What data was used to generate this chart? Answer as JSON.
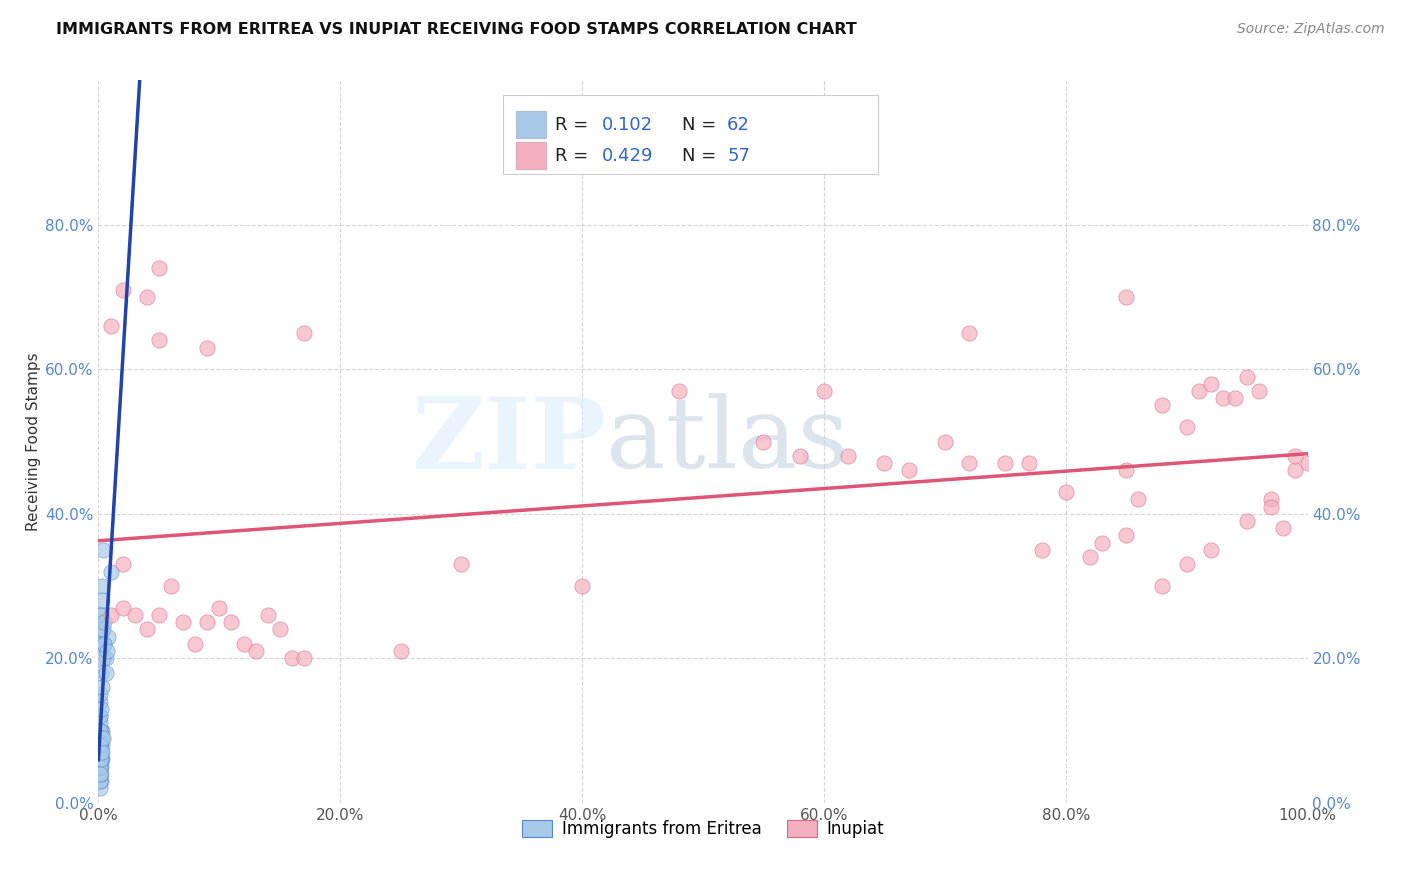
{
  "title": "IMMIGRANTS FROM ERITREA VS INUPIAT RECEIVING FOOD STAMPS CORRELATION CHART",
  "source": "Source: ZipAtlas.com",
  "ylabel": "Receiving Food Stamps",
  "xlim": [
    0,
    1.0
  ],
  "ylim": [
    0,
    1.0
  ],
  "xticks": [
    0.0,
    0.2,
    0.4,
    0.6,
    0.8,
    1.0
  ],
  "yticks": [
    0.0,
    0.2,
    0.4,
    0.6,
    0.8
  ],
  "xticklabels": [
    "0.0%",
    "20.0%",
    "40.0%",
    "60.0%",
    "80.0%",
    "100.0%"
  ],
  "yticklabels": [
    "0.0%",
    "20.0%",
    "40.0%",
    "60.0%",
    "80.0%"
  ],
  "color_eritrea": "#a8c8e8",
  "color_eritrea_edge": "#5588cc",
  "color_inupiat": "#f4b0c0",
  "color_inupiat_edge": "#dd6688",
  "color_line_eritrea": "#7799cc",
  "color_line_inupiat": "#dd5577",
  "background_color": "#ffffff",
  "scatter_eritrea_x": [
    0.001,
    0.002,
    0.003,
    0.004,
    0.005,
    0.006,
    0.008,
    0.01,
    0.001,
    0.001,
    0.002,
    0.002,
    0.003,
    0.003,
    0.004,
    0.005,
    0.001,
    0.001,
    0.002,
    0.003,
    0.004,
    0.005,
    0.006,
    0.007,
    0.001,
    0.002,
    0.003,
    0.001,
    0.002,
    0.001,
    0.002,
    0.003,
    0.001,
    0.001,
    0.002,
    0.001,
    0.002,
    0.003,
    0.001,
    0.002,
    0.001,
    0.001,
    0.002,
    0.001,
    0.003,
    0.001,
    0.002,
    0.001,
    0.001,
    0.002,
    0.001,
    0.001,
    0.002,
    0.001,
    0.001,
    0.002,
    0.001,
    0.001,
    0.002,
    0.001,
    0.003,
    0.004
  ],
  "scatter_eritrea_y": [
    0.25,
    0.26,
    0.3,
    0.35,
    0.22,
    0.2,
    0.23,
    0.32,
    0.14,
    0.15,
    0.24,
    0.26,
    0.28,
    0.22,
    0.24,
    0.25,
    0.1,
    0.12,
    0.18,
    0.16,
    0.2,
    0.22,
    0.18,
    0.21,
    0.08,
    0.09,
    0.1,
    0.06,
    0.07,
    0.05,
    0.06,
    0.08,
    0.04,
    0.03,
    0.05,
    0.08,
    0.07,
    0.06,
    0.09,
    0.1,
    0.11,
    0.12,
    0.13,
    0.1,
    0.09,
    0.07,
    0.06,
    0.08,
    0.04,
    0.03,
    0.02,
    0.03,
    0.04,
    0.05,
    0.06,
    0.07,
    0.08,
    0.05,
    0.06,
    0.04,
    0.07,
    0.09
  ],
  "scatter_inupiat_x": [
    0.01,
    0.02,
    0.02,
    0.03,
    0.04,
    0.05,
    0.06,
    0.07,
    0.08,
    0.09,
    0.1,
    0.11,
    0.12,
    0.13,
    0.14,
    0.15,
    0.16,
    0.17,
    0.25,
    0.3,
    0.4,
    0.48,
    0.55,
    0.58,
    0.6,
    0.62,
    0.65,
    0.67,
    0.7,
    0.72,
    0.75,
    0.77,
    0.78,
    0.8,
    0.82,
    0.83,
    0.85,
    0.86,
    0.88,
    0.9,
    0.91,
    0.92,
    0.93,
    0.94,
    0.95,
    0.96,
    0.97,
    0.98,
    0.99,
    1.0,
    0.85,
    0.88,
    0.9,
    0.92,
    0.95,
    0.97,
    0.99
  ],
  "scatter_inupiat_y": [
    0.26,
    0.33,
    0.27,
    0.26,
    0.24,
    0.26,
    0.3,
    0.25,
    0.22,
    0.25,
    0.27,
    0.25,
    0.22,
    0.21,
    0.26,
    0.24,
    0.2,
    0.2,
    0.21,
    0.33,
    0.3,
    0.57,
    0.5,
    0.48,
    0.57,
    0.48,
    0.47,
    0.46,
    0.5,
    0.47,
    0.47,
    0.47,
    0.35,
    0.43,
    0.34,
    0.36,
    0.46,
    0.42,
    0.55,
    0.52,
    0.57,
    0.58,
    0.56,
    0.56,
    0.59,
    0.57,
    0.42,
    0.38,
    0.46,
    0.47,
    0.37,
    0.3,
    0.33,
    0.35,
    0.39,
    0.41,
    0.48
  ],
  "inupiat_outliers_x": [
    0.01,
    0.02,
    0.04,
    0.05,
    0.05,
    0.09,
    0.17,
    0.72,
    0.85
  ],
  "inupiat_outliers_y": [
    0.66,
    0.71,
    0.7,
    0.64,
    0.74,
    0.63,
    0.65,
    0.65,
    0.7
  ]
}
